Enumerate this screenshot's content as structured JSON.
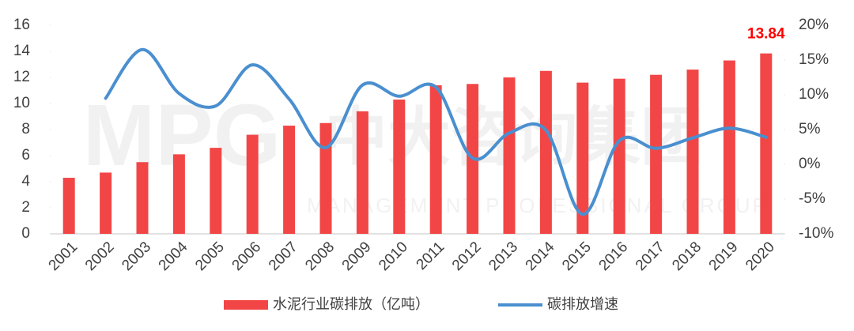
{
  "chart_data": {
    "type": "bar-line",
    "watermark": [
      "MPG",
      "中大咨询集团",
      "MANAGEMENT PROFESSIONAL GROUP"
    ],
    "categories": [
      "2001",
      "2002",
      "2003",
      "2004",
      "2005",
      "2006",
      "2007",
      "2008",
      "2009",
      "2010",
      "2011",
      "2012",
      "2013",
      "2014",
      "2015",
      "2016",
      "2017",
      "2018",
      "2019",
      "2020"
    ],
    "series": [
      {
        "name": "水泥行业碳排放（亿吨）",
        "type": "bar",
        "color": "#f24646",
        "values": [
          4.3,
          4.7,
          5.5,
          6.1,
          6.6,
          7.6,
          8.3,
          8.5,
          9.4,
          10.3,
          11.4,
          11.5,
          12.0,
          12.5,
          11.6,
          11.9,
          12.2,
          12.6,
          13.3,
          13.84
        ]
      },
      {
        "name": "碳排放增速",
        "type": "line",
        "axis": "y2",
        "color": "#4a8fcf",
        "values": [
          null,
          9.5,
          16.5,
          10.2,
          8.4,
          14.3,
          9.4,
          2.4,
          11.4,
          9.8,
          11.1,
          0.9,
          4.5,
          4.9,
          -7.2,
          3.4,
          2.3,
          3.8,
          5.2,
          3.9
        ]
      }
    ],
    "ylim": [
      0,
      16
    ],
    "yticks": [
      0,
      2,
      4,
      6,
      8,
      10,
      12,
      14,
      16
    ],
    "y2lim": [
      -10,
      20
    ],
    "y2ticks": [
      {
        "value": -10,
        "label": "-10%"
      },
      {
        "value": -5,
        "label": "-5%"
      },
      {
        "value": 0,
        "label": "0%"
      },
      {
        "value": 5,
        "label": "5%"
      },
      {
        "value": 10,
        "label": "10%"
      },
      {
        "value": 15,
        "label": "15%"
      },
      {
        "value": 20,
        "label": "20%"
      }
    ],
    "label_color": "#ff0000",
    "legend": "bottom"
  }
}
